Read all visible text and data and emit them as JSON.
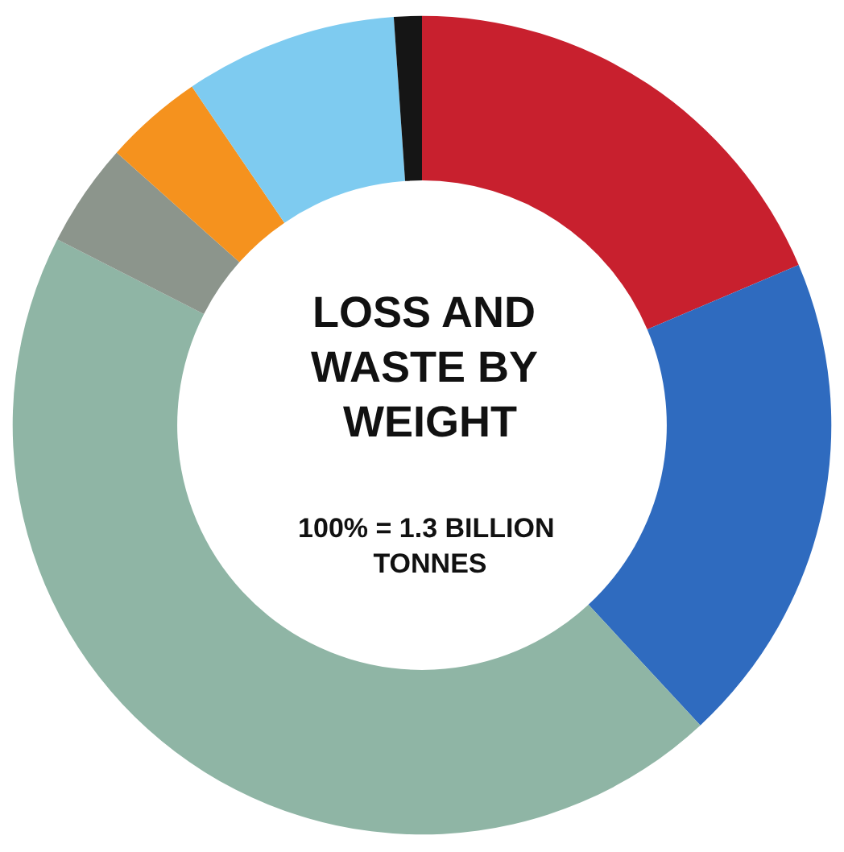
{
  "chart_data": {
    "type": "donut",
    "title": "LOSS AND WASTE BY WEIGHT",
    "subtitle": "100% = 1.3 BILLION TONNES",
    "categories": [
      null,
      null,
      null,
      null,
      null,
      null,
      null
    ],
    "values": [
      18.6,
      19.5,
      44.4,
      4.1,
      3.9,
      8.4,
      1.1
    ],
    "colors": [
      "#c8202e",
      "#2f6bbf",
      "#8fb5a5",
      "#8c958c",
      "#f5921e",
      "#7ecbf0",
      "#151515"
    ]
  }
}
